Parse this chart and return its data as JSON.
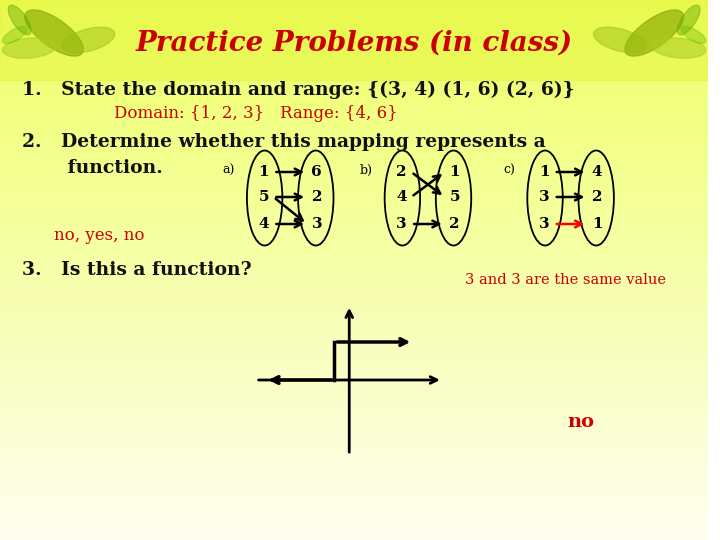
{
  "title": "Practice Problems (in class)",
  "title_color": "#CC0000",
  "title_fontsize": 20,
  "bg_yellow": "#EEFF66",
  "bg_white": "#FEFEF8",
  "problem1_text": "1.   State the domain and range: {(3, 4) (1, 6) (2, 6)}",
  "problem1_answer": "Domain: {1, 2, 3}   Range: {4, 6}",
  "problem2_line1": "2.   Determine whether this mapping represents a",
  "problem2_line2": "       function.",
  "problem2_answer": "no, yes, no",
  "problem3_text": "3.   Is this a function?",
  "problem3_answer": "no",
  "problem3_note": "3 and 3 are the same value",
  "text_color": "#111111",
  "red_color": "#CC0000",
  "black": "#000000",
  "diagram_a_left": [
    "1",
    "5",
    "4"
  ],
  "diagram_a_right": [
    "6",
    "2",
    "3"
  ],
  "diagram_b_left": [
    "2",
    "4",
    "3"
  ],
  "diagram_b_right": [
    "1",
    "5",
    "2"
  ],
  "diagram_c_left": [
    "1",
    "3",
    "3"
  ],
  "diagram_c_right": [
    "4",
    "2",
    "1"
  ]
}
